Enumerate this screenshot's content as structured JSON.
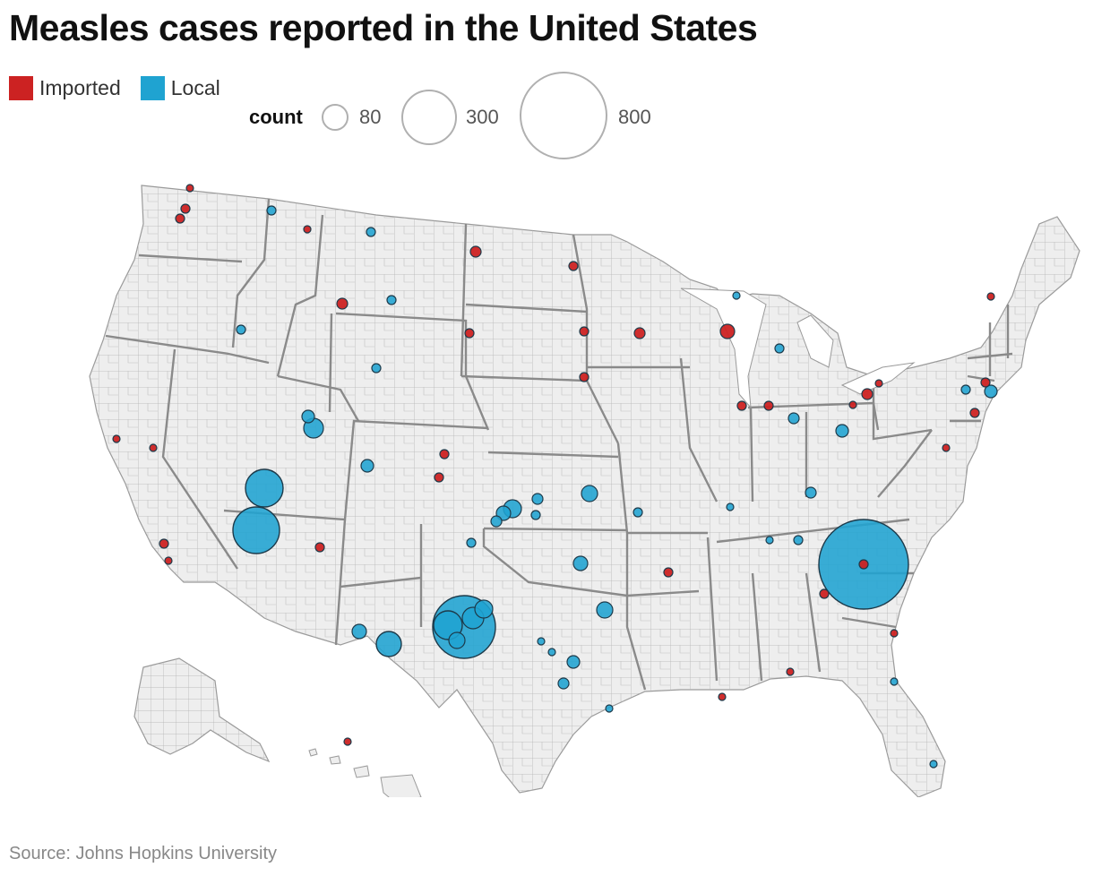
{
  "title": "Measles cases reported in the United States",
  "legend": {
    "items": [
      {
        "label": "Imported",
        "color": "#cc2222"
      },
      {
        "label": "Local",
        "color": "#1fa3d1"
      }
    ],
    "size_title": "count",
    "sizes": [
      {
        "label": "80",
        "value": 80
      },
      {
        "label": "300",
        "value": 300
      },
      {
        "label": "800",
        "value": 800
      }
    ]
  },
  "source": "Source: Johns Hopkins University",
  "map": {
    "region": "United States (counties)",
    "land_color": "#eeeeee",
    "county_border_color": "#a8a8a8",
    "state_border_color": "#8a8a8a"
  }
}
